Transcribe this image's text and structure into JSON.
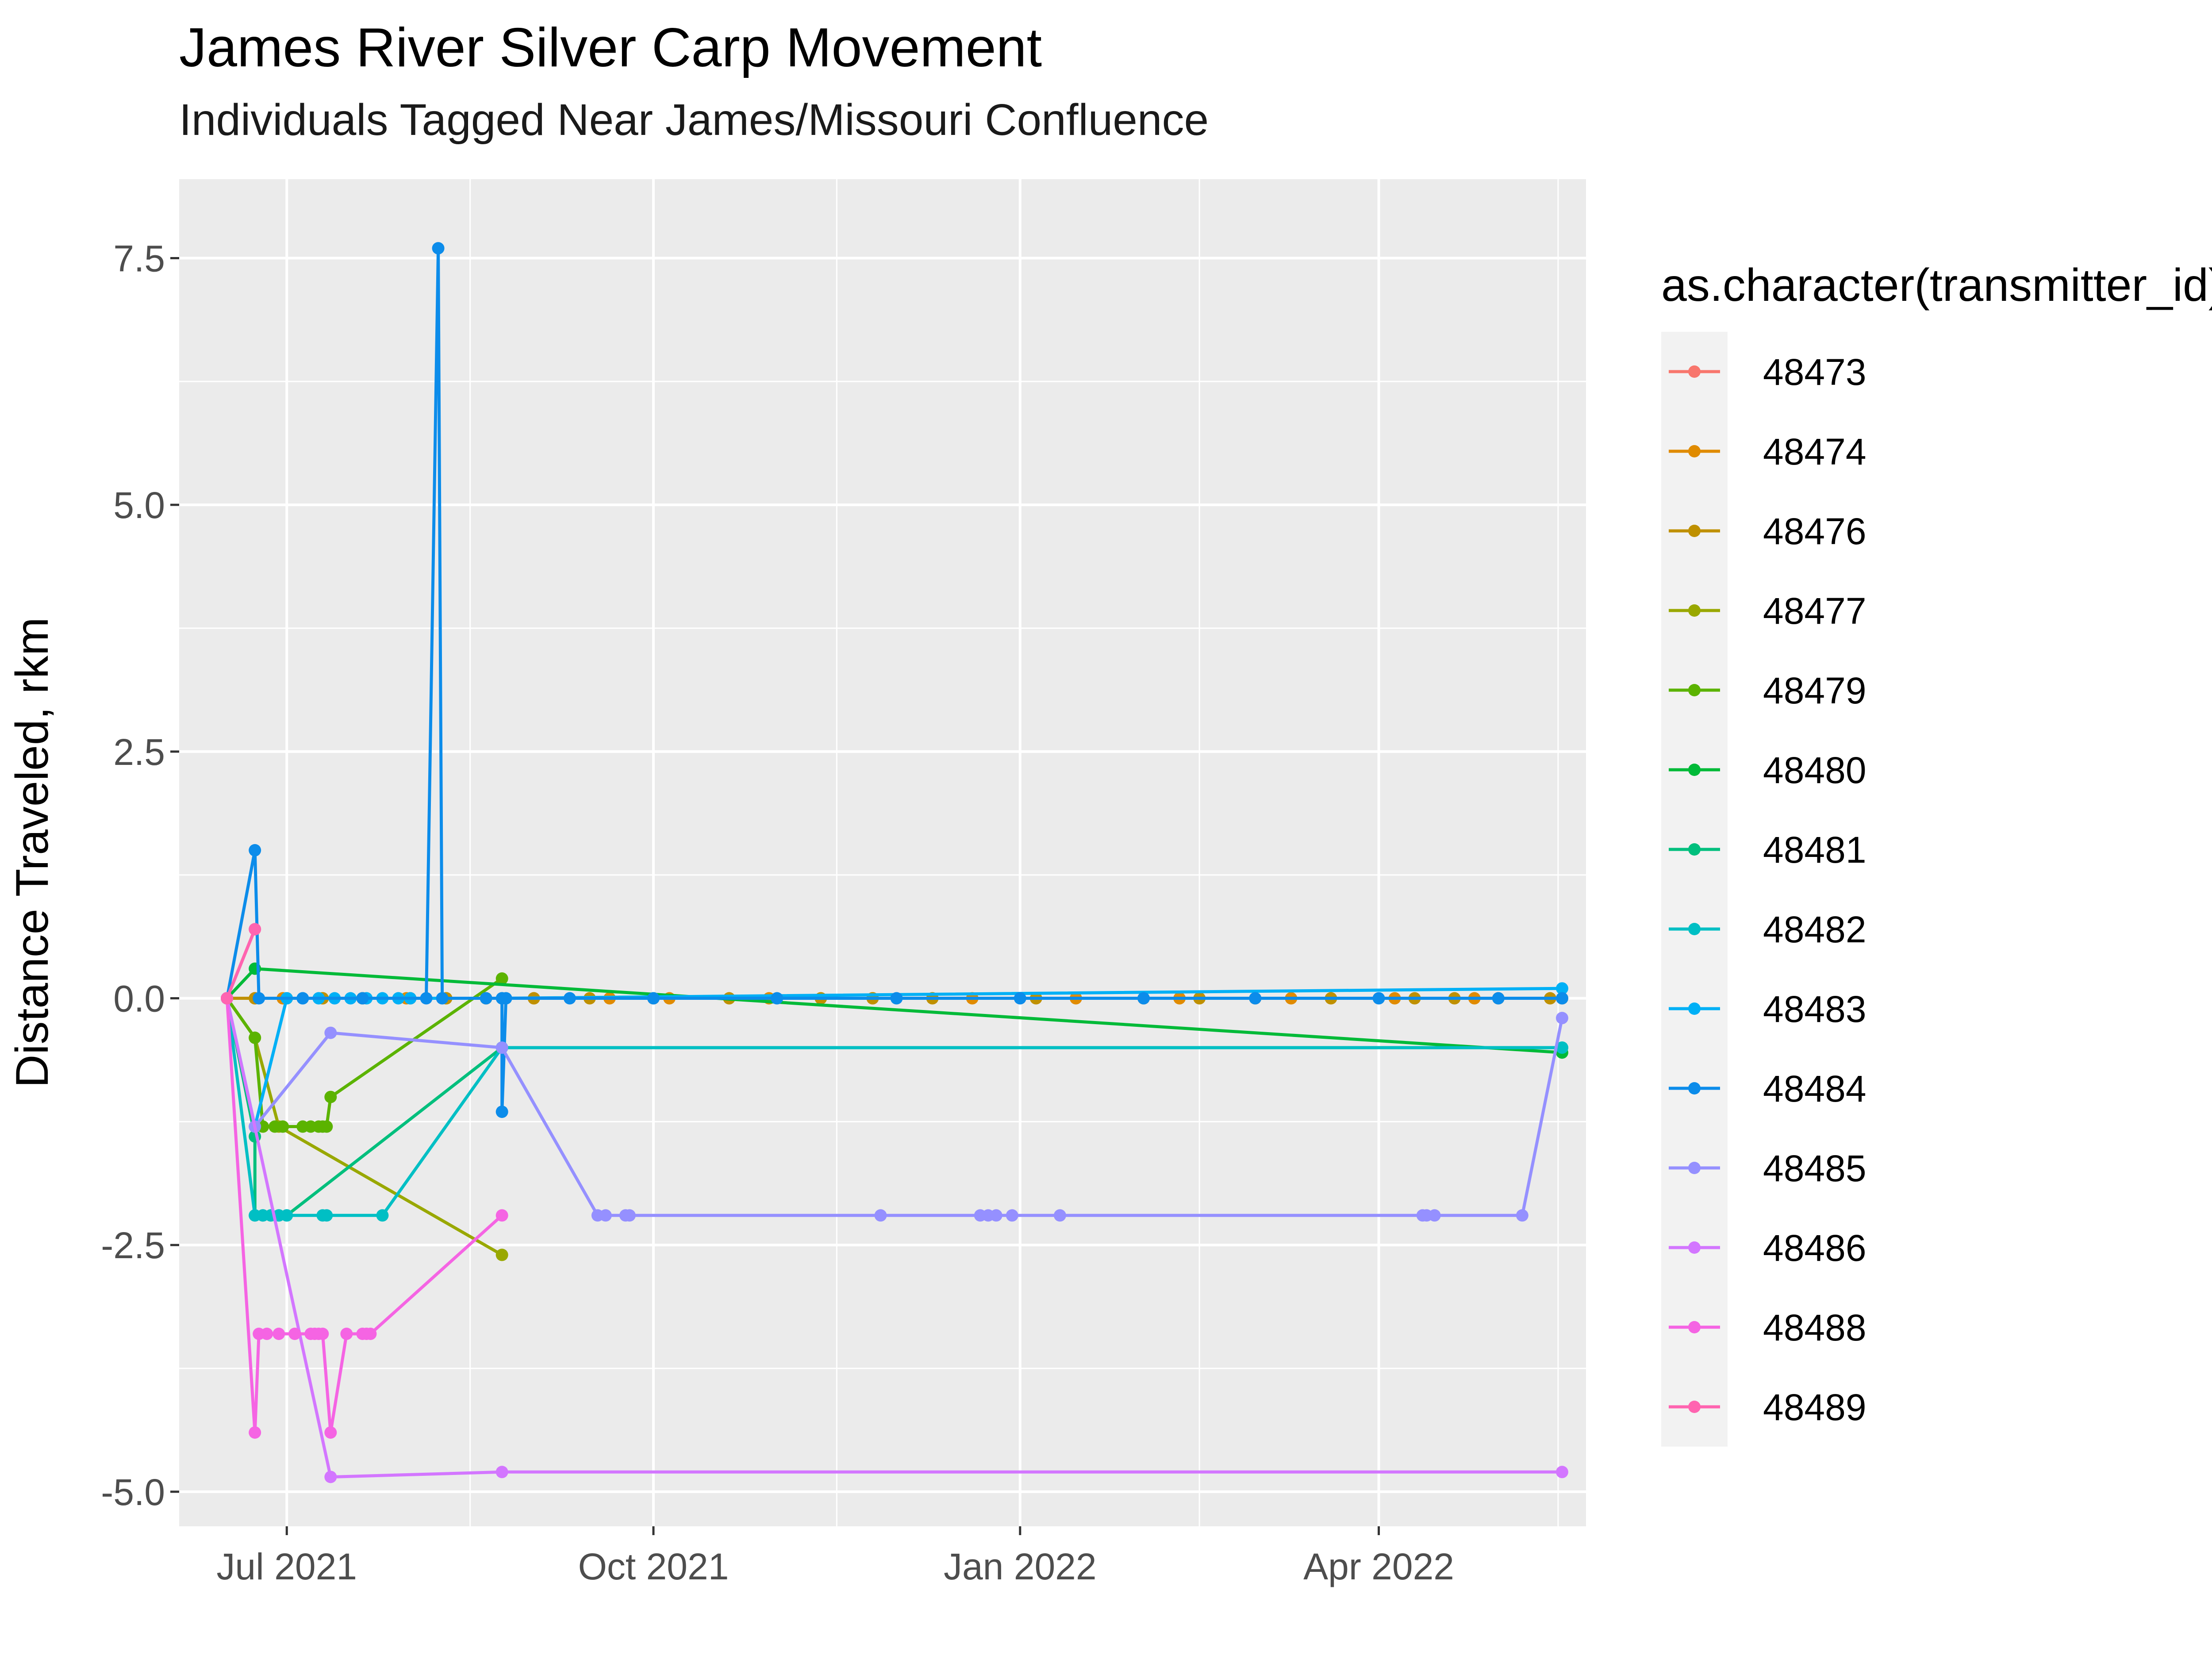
{
  "chart_data": {
    "type": "line",
    "title": "James River Silver Carp Movement",
    "subtitle": "Individuals Tagged Near James/Missouri Confluence",
    "xlabel": "",
    "ylabel": "Distance Traveled, rkm",
    "x_is_date": true,
    "xlim": [
      "2021-06-04",
      "2022-05-23"
    ],
    "ylim": [
      -5.35,
      8.3
    ],
    "x_ticks": [
      {
        "value": "2021-07-01",
        "label": "Jul 2021"
      },
      {
        "value": "2021-10-01",
        "label": "Oct 2021"
      },
      {
        "value": "2022-01-01",
        "label": "Jan 2022"
      },
      {
        "value": "2022-04-01",
        "label": "Apr 2022"
      }
    ],
    "y_ticks": [
      {
        "value": 7.5,
        "label": "7.5"
      },
      {
        "value": 5.0,
        "label": "5.0"
      },
      {
        "value": 2.5,
        "label": "2.5"
      },
      {
        "value": 0.0,
        "label": "0.0"
      },
      {
        "value": -2.5,
        "label": "-2.5"
      },
      {
        "value": -5.0,
        "label": "-5.0"
      }
    ],
    "grid": true,
    "legend": {
      "title": "as.character(transmitter_id)",
      "position": "right"
    },
    "series": [
      {
        "name": "48473",
        "color": "#F8766D",
        "x": [
          "2021-06-16",
          "2021-06-23"
        ],
        "y": [
          0.0,
          0.7
        ]
      },
      {
        "name": "48474",
        "color": "#E08B00",
        "x": [
          "2021-06-16",
          "2021-06-23",
          "2021-06-30",
          "2021-07-10",
          "2021-07-20",
          "2021-07-31",
          "2021-08-10",
          "2021-08-20",
          "2021-09-01",
          "2021-09-20",
          "2021-10-05",
          "2021-10-30",
          "2021-11-25",
          "2021-12-20",
          "2022-01-15",
          "2022-02-10",
          "2022-03-10",
          "2022-04-05",
          "2022-04-25",
          "2022-05-17"
        ],
        "y": [
          0.0,
          0.0,
          0.0,
          0.0,
          0.0,
          0.0,
          0.0,
          0.0,
          0.0,
          0.0,
          0.0,
          0.0,
          0.0,
          0.0,
          0.0,
          0.0,
          0.0,
          0.0,
          0.0,
          0.0
        ]
      },
      {
        "name": "48476",
        "color": "#BF9000",
        "x": [
          "2021-06-16",
          "2021-06-23",
          "2021-07-01",
          "2021-07-10",
          "2021-07-20",
          "2021-08-01",
          "2021-08-10",
          "2021-08-20",
          "2021-09-01",
          "2021-09-15",
          "2021-10-01",
          "2021-10-20",
          "2021-11-12",
          "2021-11-25",
          "2021-12-10",
          "2022-01-05",
          "2022-02-01",
          "2022-02-15",
          "2022-03-01",
          "2022-03-20",
          "2022-04-10",
          "2022-04-20",
          "2022-05-01",
          "2022-05-14"
        ],
        "y": [
          0.0,
          0.0,
          0.0,
          0.0,
          0.0,
          0.0,
          0.0,
          0.0,
          0.0,
          0.0,
          0.0,
          0.0,
          0.0,
          0.0,
          0.0,
          0.0,
          0.0,
          0.0,
          0.0,
          0.0,
          0.0,
          0.0,
          0.0,
          0.0
        ]
      },
      {
        "name": "48477",
        "color": "#99A800",
        "x": [
          "2021-06-16",
          "2021-06-23",
          "2021-06-29",
          "2021-08-24"
        ],
        "y": [
          0.0,
          -0.4,
          -1.3,
          -2.6
        ]
      },
      {
        "name": "48479",
        "color": "#5BB300",
        "x": [
          "2021-06-16",
          "2021-06-23",
          "2021-06-25",
          "2021-06-28",
          "2021-06-30",
          "2021-07-05",
          "2021-07-07",
          "2021-07-09",
          "2021-07-10",
          "2021-07-11",
          "2021-07-12",
          "2021-08-24"
        ],
        "y": [
          0.0,
          -0.4,
          -1.3,
          -1.3,
          -1.3,
          -1.3,
          -1.3,
          -1.3,
          -1.3,
          -1.3,
          -1.0,
          0.2
        ]
      },
      {
        "name": "48480",
        "color": "#00BA38",
        "x": [
          "2021-06-16",
          "2021-06-23",
          "2022-05-17"
        ],
        "y": [
          0.0,
          0.3,
          -0.55
        ]
      },
      {
        "name": "48481",
        "color": "#00BF7D",
        "x": [
          "2021-06-16",
          "2021-06-23",
          "2021-06-23",
          "2021-06-25",
          "2021-06-27",
          "2021-06-29",
          "2021-07-01",
          "2021-08-24",
          "2022-05-17"
        ],
        "y": [
          0.0,
          -1.4,
          -2.2,
          -2.2,
          -2.2,
          -2.2,
          -2.2,
          -0.5,
          -0.5
        ]
      },
      {
        "name": "48482",
        "color": "#00BFC4",
        "x": [
          "2021-06-16",
          "2021-06-23",
          "2021-06-25",
          "2021-06-27",
          "2021-06-29",
          "2021-07-01",
          "2021-07-10",
          "2021-07-11",
          "2021-07-25",
          "2021-08-24",
          "2022-05-17"
        ],
        "y": [
          0.0,
          -2.2,
          -2.2,
          -2.2,
          -2.2,
          -2.2,
          -2.2,
          -2.2,
          -2.2,
          -0.5,
          -0.5
        ]
      },
      {
        "name": "48483",
        "color": "#00B0F6",
        "x": [
          "2021-06-16",
          "2021-06-23",
          "2021-07-01",
          "2021-07-05",
          "2021-07-09",
          "2021-07-13",
          "2021-07-17",
          "2021-07-21",
          "2021-07-25",
          "2021-07-29",
          "2021-08-01",
          "2021-08-24",
          "2022-05-17"
        ],
        "y": [
          0.0,
          -1.3,
          0.0,
          0.0,
          0.0,
          0.0,
          0.0,
          0.0,
          0.0,
          0.0,
          0.0,
          0.0,
          0.1
        ]
      },
      {
        "name": "48484",
        "color": "#0C8CEA",
        "x": [
          "2021-06-16",
          "2021-06-23",
          "2021-06-24",
          "2021-07-05",
          "2021-07-20",
          "2021-08-05",
          "2021-08-08",
          "2021-08-09",
          "2021-08-20",
          "2021-08-24",
          "2021-08-24",
          "2021-08-25",
          "2021-09-10",
          "2021-10-01",
          "2021-11-01",
          "2021-12-01",
          "2022-01-01",
          "2022-02-01",
          "2022-03-01",
          "2022-04-01",
          "2022-05-01",
          "2022-05-17"
        ],
        "y": [
          0.0,
          1.5,
          0.0,
          0.0,
          0.0,
          0.0,
          7.6,
          0.0,
          0.0,
          0.0,
          -1.15,
          0.0,
          0.0,
          0.0,
          0.0,
          0.0,
          0.0,
          0.0,
          0.0,
          0.0,
          0.0,
          0.0
        ]
      },
      {
        "name": "48485",
        "color": "#9590FF",
        "x": [
          "2021-06-16",
          "2021-06-23",
          "2021-07-12",
          "2021-08-24",
          "2021-09-17",
          "2021-09-19",
          "2021-09-24",
          "2021-09-25",
          "2021-11-27",
          "2021-12-22",
          "2021-12-24",
          "2021-12-26",
          "2021-12-30",
          "2022-01-11",
          "2022-04-12",
          "2022-04-13",
          "2022-04-15",
          "2022-05-07",
          "2022-05-17"
        ],
        "y": [
          0.0,
          -1.3,
          -0.35,
          -0.5,
          -2.2,
          -2.2,
          -2.2,
          -2.2,
          -2.2,
          -2.2,
          -2.2,
          -2.2,
          -2.2,
          -2.2,
          -2.2,
          -2.2,
          -2.2,
          -2.2,
          -0.2
        ]
      },
      {
        "name": "48486",
        "color": "#D376FF",
        "x": [
          "2021-06-16",
          "2021-07-12",
          "2021-08-24",
          "2022-05-17"
        ],
        "y": [
          0.0,
          -4.85,
          -4.8,
          -4.8
        ]
      },
      {
        "name": "48488",
        "color": "#F564E3",
        "x": [
          "2021-06-16",
          "2021-06-23",
          "2021-06-24",
          "2021-06-26",
          "2021-06-29",
          "2021-07-03",
          "2021-07-07",
          "2021-07-08",
          "2021-07-09",
          "2021-07-10",
          "2021-07-12",
          "2021-07-16",
          "2021-07-20",
          "2021-07-21",
          "2021-07-22",
          "2021-08-24"
        ],
        "y": [
          0.0,
          -4.4,
          -3.4,
          -3.4,
          -3.4,
          -3.4,
          -3.4,
          -3.4,
          -3.4,
          -3.4,
          -4.4,
          -3.4,
          -3.4,
          -3.4,
          -3.4,
          -2.2
        ]
      },
      {
        "name": "48489",
        "color": "#FF64B0",
        "x": [
          "2021-06-16",
          "2021-06-23"
        ],
        "y": [
          0.0,
          0.7
        ]
      }
    ]
  }
}
